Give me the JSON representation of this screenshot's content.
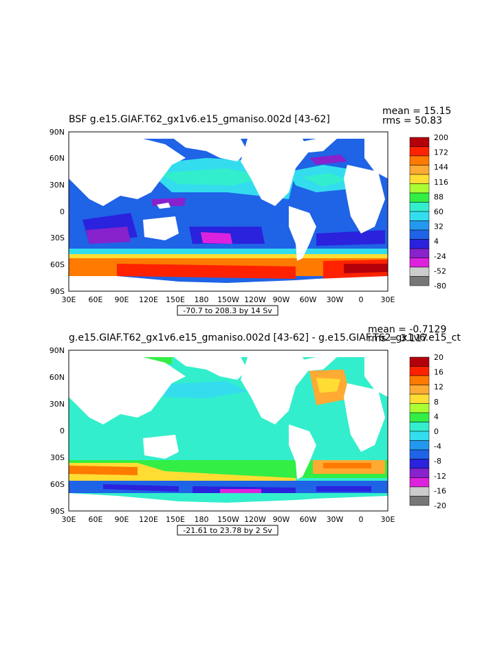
{
  "panels": [
    {
      "title": "BSF g.e15.GIAF.T62_gx1v6.e15_gmaniso.002d [43-62]",
      "mean_text": "mean = 15.15",
      "rms_text": "rms = 50.83",
      "range_text": "-70.7 to 208.3 by 14 Sv",
      "lat_labels": [
        "90N",
        "60N",
        "30N",
        "0",
        "30S",
        "60S",
        "90S"
      ],
      "lon_labels": [
        "30E",
        "60E",
        "90E",
        "120E",
        "150E",
        "180",
        "150W",
        "120W",
        "90W",
        "60W",
        "30W",
        "0",
        "30E"
      ],
      "colorbar_labels": [
        "200",
        "172",
        "144",
        "116",
        "88",
        "60",
        "32",
        "4",
        "-24",
        "-52",
        "-80"
      ],
      "colorbar_colors": [
        "#b4000a",
        "#ff2200",
        "#ff7a00",
        "#ffaa33",
        "#ffdd33",
        "#aaff33",
        "#33ee44",
        "#33eecc",
        "#33ddee",
        "#2299ee",
        "#1f63e6",
        "#2a22dd",
        "#8822cc",
        "#dd22dd",
        "#cccccc",
        "#777777"
      ]
    },
    {
      "title": "g.e15.GIAF.T62_gx1v6.e15_gmaniso.002d [43-62] - g.e15.GIAF.T62_gx1v6.e15_ct",
      "mean_text": "mean = -0.7129",
      "rms_text": "rms = 3.117",
      "range_text": "-21.61 to 23.78 by 2 Sv",
      "lat_labels": [
        "90N",
        "60N",
        "30N",
        "0",
        "30S",
        "60S",
        "90S"
      ],
      "lon_labels": [
        "30E",
        "60E",
        "90E",
        "120E",
        "150E",
        "180",
        "150W",
        "120W",
        "90W",
        "60W",
        "30W",
        "0",
        "30E"
      ],
      "colorbar_labels": [
        "20",
        "16",
        "12",
        "8",
        "4",
        "0",
        "-4",
        "-8",
        "-12",
        "-16",
        "-20"
      ],
      "colorbar_colors": [
        "#b4000a",
        "#ff2200",
        "#ff7a00",
        "#ffaa33",
        "#ffdd33",
        "#aaff33",
        "#33ee44",
        "#33eecc",
        "#33ddee",
        "#2299ee",
        "#1f63e6",
        "#2a22dd",
        "#8822cc",
        "#dd22dd",
        "#cccccc",
        "#777777"
      ]
    }
  ]
}
